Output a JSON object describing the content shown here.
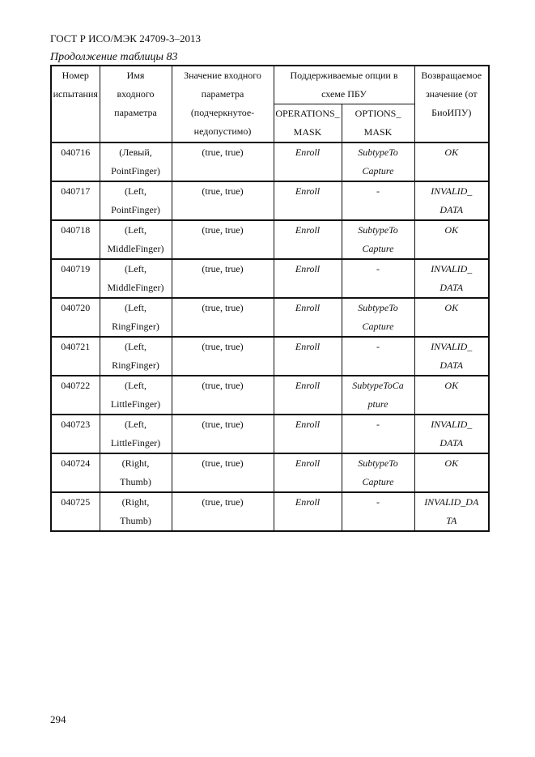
{
  "header": {
    "standard": "ГОСТ Р ИСО/МЭК 24709-3–2013",
    "caption": "Продолжение таблицы 83"
  },
  "table": {
    "columns": {
      "number": "Номер\nиспытания",
      "name": "Имя\nвходного\nпараметра",
      "value": "Значение входного\nпараметра\n(подчеркнутое-\nнедопустимо)",
      "options_group": "Поддерживаемые опции в\nсхеме ПБУ",
      "operations_mask": "OPERATIONS_\nMASK",
      "options_mask": "OPTIONS_\nMASK",
      "return": "Возвращаемое\nзначение (от\nБиоИПУ)"
    },
    "rows": [
      {
        "number": "040716",
        "name": "(Левый,\nPointFinger)",
        "value": "(true, true)",
        "operations": "Enroll",
        "options": "SubtypeTo\nCapture",
        "return": "OK"
      },
      {
        "number": "040717",
        "name": "(Left,\nPointFinger)",
        "value": "(true, true)",
        "operations": "Enroll",
        "options": "-",
        "return": "INVALID_\nDATA"
      },
      {
        "number": "040718",
        "name": "(Left,\nMiddleFinger)",
        "value": "(true, true)",
        "operations": "Enroll",
        "options": "SubtypeTo\nCapture",
        "return": "OK"
      },
      {
        "number": "040719",
        "name": "(Left,\nMiddleFinger)",
        "value": "(true, true)",
        "operations": "Enroll",
        "options": "-",
        "return": "INVALID_\nDATA"
      },
      {
        "number": "040720",
        "name": "(Left,\nRingFinger)",
        "value": "(true, true)",
        "operations": "Enroll",
        "options": "SubtypeTo\nCapture",
        "return": "OK"
      },
      {
        "number": "040721",
        "name": "(Left,\nRingFinger)",
        "value": "(true, true)",
        "operations": "Enroll",
        "options": "-",
        "return": "INVALID_\nDATA"
      },
      {
        "number": "040722",
        "name": "(Left,\nLittleFinger)",
        "value": "(true, true)",
        "operations": "Enroll",
        "options": "SubtypeToCa\npture",
        "return": "OK"
      },
      {
        "number": "040723",
        "name": "(Left,\nLittleFinger)",
        "value": "(true, true)",
        "operations": "Enroll",
        "options": "-",
        "return": "INVALID_\nDATA"
      },
      {
        "number": "040724",
        "name": "(Right,\nThumb)",
        "value": "(true, true)",
        "operations": "Enroll",
        "options": "SubtypeTo\nCapture",
        "return": "OK"
      },
      {
        "number": "040725",
        "name": "(Right,\nThumb)",
        "value": "(true, true)",
        "operations": "Enroll",
        "options": "-",
        "return": "INVALID_DA\nTA"
      }
    ]
  },
  "footer": {
    "page_number": "294"
  }
}
